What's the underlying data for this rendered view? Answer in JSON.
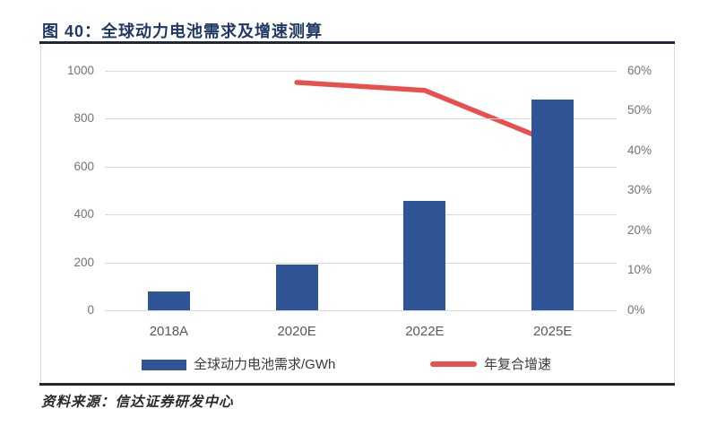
{
  "figure": {
    "title": "图 40：全球动力电池需求及增速测算",
    "source": "资料来源：信达证券研发中心"
  },
  "colors": {
    "title": "#1F3864",
    "bar": "#2F5597",
    "line": "#E8504D",
    "grid": "#D9D9D9",
    "tick_label": "#757575",
    "x_label": "#595959"
  },
  "chart_data": {
    "type": "combo",
    "title": "全球动力电池需求及增速测算",
    "categories": [
      "2018A",
      "2020E",
      "2022E",
      "2025E"
    ],
    "series": [
      {
        "name": "全球动力电池需求/GWh",
        "type": "bar",
        "axis": "left",
        "color": "#2F5597",
        "values": [
          80,
          190,
          455,
          880
        ]
      },
      {
        "name": "年复合增速",
        "type": "line",
        "axis": "right",
        "color": "#E8504D",
        "values": [
          null,
          57,
          55,
          42
        ]
      }
    ],
    "left_axis": {
      "min": 0,
      "max": 1000,
      "step": 200,
      "ticks": [
        "0",
        "200",
        "400",
        "600",
        "800",
        "1000"
      ]
    },
    "right_axis": {
      "min": 0,
      "max": 60,
      "step": 10,
      "ticks": [
        "0%",
        "10%",
        "20%",
        "30%",
        "40%",
        "50%",
        "60%"
      ]
    },
    "grid": "horizontal",
    "legend_position": "bottom",
    "xlabel": "",
    "ylabel_left": "GWh",
    "ylabel_right": "%"
  }
}
